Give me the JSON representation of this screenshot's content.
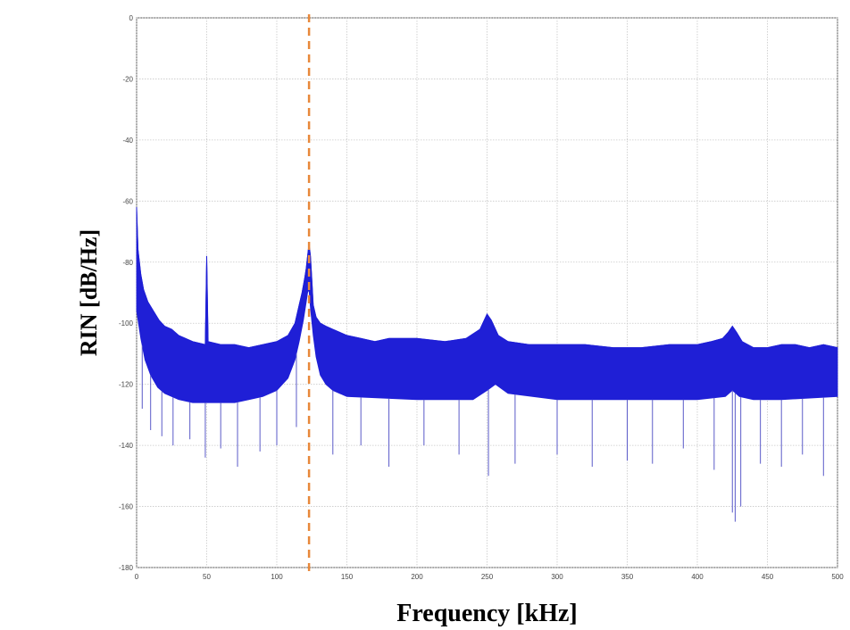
{
  "chart_data": {
    "type": "line",
    "title": "",
    "xlabel": "Frequency [kHz]",
    "ylabel": "RIN [dB/Hz]",
    "xlim": [
      0,
      500
    ],
    "ylim": [
      -180,
      0
    ],
    "xticks": [
      "0",
      "50",
      "100",
      "150",
      "200",
      "250",
      "300",
      "350",
      "400",
      "450",
      "500"
    ],
    "yticks": [
      "0",
      "-20",
      "-40",
      "-60",
      "-80",
      "-100",
      "-120",
      "-140",
      "-160",
      "-180"
    ],
    "grid": true,
    "marker_line": {
      "x": 123,
      "style": "dashed",
      "color": "#e8883a"
    },
    "series": [
      {
        "color": "#1f1fd6",
        "upper": {
          "x": [
            0,
            1,
            3,
            5,
            8,
            12,
            16,
            20,
            25,
            30,
            40,
            49,
            50,
            51,
            60,
            70,
            80,
            90,
            100,
            108,
            113,
            116,
            118,
            120,
            121,
            122,
            123,
            124,
            125,
            126,
            128,
            131,
            135,
            140,
            150,
            160,
            170,
            180,
            200,
            220,
            235,
            245,
            250,
            253,
            258,
            265,
            280,
            300,
            320,
            340,
            360,
            380,
            400,
            410,
            418,
            422,
            425,
            428,
            432,
            440,
            450,
            460,
            470,
            480,
            490,
            500
          ],
          "y": [
            -62,
            -76,
            -84,
            -89,
            -93,
            -96,
            -99,
            -101,
            -102,
            -104,
            -106,
            -107,
            -78,
            -106,
            -107,
            -107,
            -108,
            -107,
            -106,
            -104,
            -100,
            -94,
            -90,
            -85,
            -82,
            -78,
            -74,
            -78,
            -86,
            -94,
            -98,
            -100,
            -101,
            -102,
            -104,
            -105,
            -106,
            -105,
            -105,
            -106,
            -105,
            -102,
            -97,
            -99,
            -104,
            -106,
            -107,
            -107,
            -107,
            -108,
            -108,
            -107,
            -107,
            -106,
            -105,
            -103,
            -101,
            -103,
            -106,
            -108,
            -108,
            -107,
            -107,
            -108,
            -107,
            -108
          ]
        },
        "band_bottom": {
          "x": [
            0,
            3,
            6,
            10,
            15,
            20,
            30,
            40,
            50,
            60,
            70,
            80,
            90,
            100,
            108,
            113,
            116,
            119,
            121,
            122,
            123,
            124,
            126,
            128,
            131,
            135,
            140,
            150,
            200,
            240,
            250,
            256,
            265,
            300,
            350,
            400,
            420,
            425,
            430,
            440,
            460,
            500
          ],
          "y": [
            -96,
            -105,
            -112,
            -117,
            -121,
            -123,
            -125,
            -126,
            -126,
            -126,
            -126,
            -125,
            -124,
            -122,
            -118,
            -112,
            -106,
            -99,
            -93,
            -90,
            -89,
            -95,
            -104,
            -111,
            -117,
            -120,
            -122,
            -124,
            -125,
            -125,
            -122,
            -120,
            -123,
            -125,
            -125,
            -125,
            -124,
            -122,
            -124,
            -125,
            -125,
            -124
          ]
        },
        "lower_spikes": {
          "x": [
            4,
            10,
            18,
            26,
            38,
            49,
            60,
            72,
            88,
            100,
            114,
            140,
            160,
            180,
            205,
            230,
            251,
            270,
            300,
            325,
            350,
            368,
            390,
            412,
            425,
            427,
            431,
            445,
            460,
            475,
            490
          ],
          "y": [
            -128,
            -135,
            -137,
            -140,
            -138,
            -144,
            -141,
            -147,
            -142,
            -140,
            -134,
            -143,
            -140,
            -147,
            -140,
            -143,
            -150,
            -146,
            -143,
            -147,
            -145,
            -146,
            -141,
            -148,
            -162,
            -165,
            -160,
            -146,
            -147,
            -143,
            -150
          ]
        }
      }
    ]
  }
}
